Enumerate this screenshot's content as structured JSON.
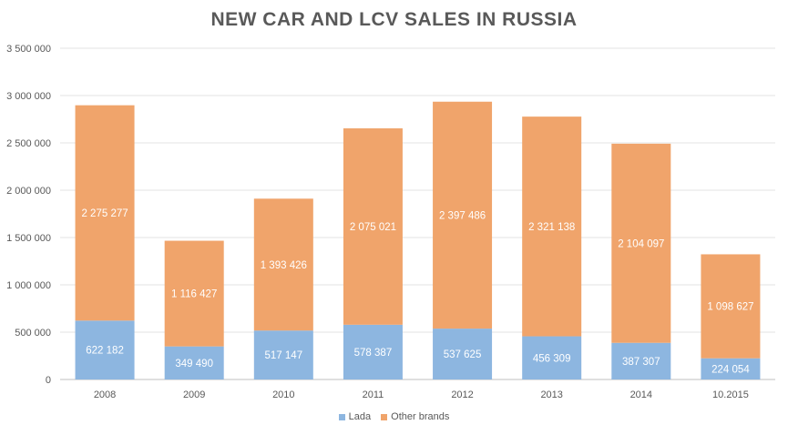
{
  "chart_data": {
    "type": "bar",
    "stacked": true,
    "title": "NEW CAR AND LCV SALES IN RUSSIA",
    "xlabel": "",
    "ylabel": "",
    "ylim": [
      0,
      3500000
    ],
    "yticks": [
      0,
      500000,
      1000000,
      1500000,
      2000000,
      2500000,
      3000000,
      3500000
    ],
    "ytick_labels": [
      "0",
      "500 000",
      "1 000 000",
      "1 500 000",
      "2 000 000",
      "2 500 000",
      "3 000 000",
      "3 500 000"
    ],
    "grid": true,
    "legend_position": "bottom",
    "categories": [
      "2008",
      "2009",
      "2010",
      "2011",
      "2012",
      "2013",
      "2014",
      "10.2015"
    ],
    "series": [
      {
        "name": "Lada",
        "color": "#8db6e0",
        "values": [
          622182,
          349490,
          517147,
          578387,
          537625,
          456309,
          387307,
          224054
        ],
        "labels": [
          "622 182",
          "349 490",
          "517 147",
          "578 387",
          "537 625",
          "456 309",
          "387 307",
          "224 054"
        ]
      },
      {
        "name": "Other brands",
        "color": "#f0a46b",
        "values": [
          2275277,
          1116427,
          1393426,
          2075021,
          2397486,
          2321138,
          2104097,
          1098627
        ],
        "labels": [
          "2 275 277",
          "1 116 427",
          "1 393 426",
          "2 075 021",
          "2 397 486",
          "2 321 138",
          "2 104 097",
          "1 098 627"
        ]
      }
    ]
  }
}
